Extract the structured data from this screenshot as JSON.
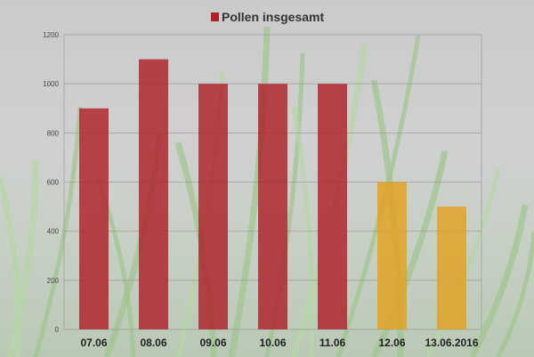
{
  "chart_data": {
    "type": "bar",
    "title": "",
    "legend": {
      "label": "Pollen insgesamt",
      "position": "top",
      "color": "#b0202a"
    },
    "categories": [
      "07.06",
      "08.06",
      "09.06",
      "10.06",
      "11.06",
      "12.06",
      "13.06.2016"
    ],
    "values": [
      900,
      1100,
      1000,
      1000,
      1000,
      600,
      500
    ],
    "bar_colors": [
      "#b0202a",
      "#b0202a",
      "#b0202a",
      "#b0202a",
      "#b0202a",
      "#e3a020",
      "#e3a020"
    ],
    "ylim": [
      0,
      1200
    ],
    "yticks": [
      0,
      200,
      400,
      600,
      800,
      1000,
      1200
    ],
    "grid": true,
    "xlabel": "",
    "ylabel": "",
    "background": "grass photo"
  }
}
